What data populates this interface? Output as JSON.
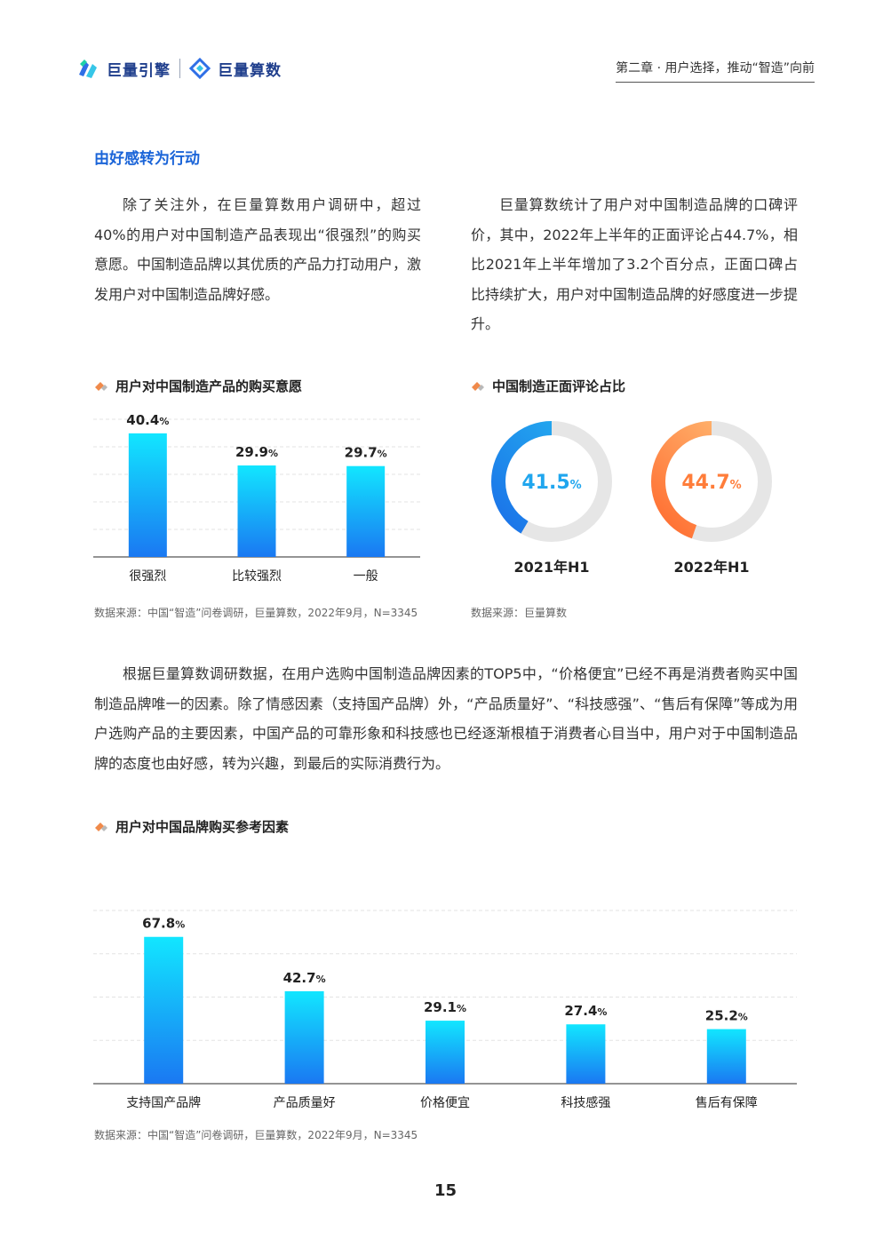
{
  "header": {
    "brand_left": "巨量引擎",
    "brand_right": "巨量算数",
    "chapter": "第二章 · 用户选择，推动“智造”向前"
  },
  "section_title": "由好感转为行动",
  "para_left": "除了关注外，在巨量算数用户调研中，超过40%的用户对中国制造产品表现出“很强烈”的购买意愿。中国制造品牌以其优质的产品力打动用户，激发用户对中国制造品牌好感。",
  "para_right": "巨量算数统计了用户对中国制造品牌的口碑评价，其中，2022年上半年的正面评论占44.7%，相比2021年上半年增加了3.2个百分点，正面口碑占比持续扩大，用户对中国制造品牌的好感度进一步提升。",
  "para_middle": "根据巨量算数调研数据，在用户选购中国制造品牌因素的TOP5中，“价格便宜”已经不再是消费者购买中国制造品牌唯一的因素。除了情感因素（支持国产品牌）外，“产品质量好”、“科技感强”、“售后有保障”等成为用户选购产品的主要因素，中国产品的可靠形象和科技感也已经逐渐根植于消费者心目当中，用户对于中国制造品牌的态度也由好感，转为兴趣，到最后的实际消费行为。",
  "chart_data": [
    {
      "type": "bar",
      "title": "用户对中国制造产品的购买意愿",
      "categories": [
        "很强烈",
        "比较强烈",
        "一般"
      ],
      "values": [
        40.4,
        29.9,
        29.7
      ],
      "value_labels": [
        "40.4",
        "29.9",
        "29.7"
      ],
      "unit": "%",
      "ylim": [
        0,
        45
      ],
      "grid": true,
      "source": "数据来源：中国“智造”问卷调研，巨量算数，2022年9月，N=3345"
    },
    {
      "type": "pie",
      "title": "中国制造正面评论占比",
      "categories": [
        "2021年H1",
        "2022年H1"
      ],
      "values": [
        41.5,
        44.7
      ],
      "value_labels": [
        "41.5",
        "44.7"
      ],
      "unit": "%",
      "colors": [
        "#1a6fe8",
        "#ff7d3a"
      ],
      "source": "数据来源：巨量算数"
    },
    {
      "type": "bar",
      "title": "用户对中国品牌购买参考因素",
      "categories": [
        "支持国产品牌",
        "产品质量好",
        "价格便宜",
        "科技感强",
        "售后有保障"
      ],
      "values": [
        67.8,
        42.7,
        29.1,
        27.4,
        25.2
      ],
      "value_labels": [
        "67.8",
        "42.7",
        "29.1",
        "27.4",
        "25.2"
      ],
      "unit": "%",
      "ylim": [
        0,
        80
      ],
      "grid": true,
      "source": "数据来源：中国“智造”问卷调研，巨量算数，2022年9月，N=3345"
    }
  ],
  "page_number": "15",
  "colors": {
    "accent": "#1a64d8",
    "bar_top": "#12e6ff",
    "bar_bottom": "#1a78f2"
  }
}
